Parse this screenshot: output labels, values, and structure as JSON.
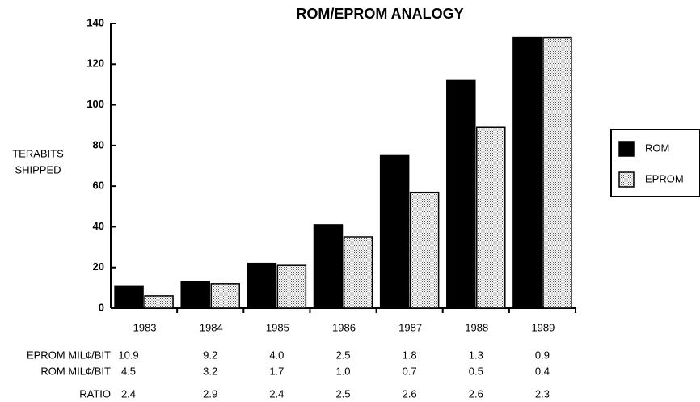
{
  "chart_data": {
    "type": "bar",
    "title": "ROM/EPROM ANALOGY",
    "ylabel": [
      "TERABITS",
      "SHIPPED"
    ],
    "categories": [
      "1983",
      "1984",
      "1985",
      "1986",
      "1987",
      "1988",
      "1989"
    ],
    "series": [
      {
        "name": "ROM",
        "color": "#000000",
        "values": [
          11,
          13,
          22,
          41,
          75,
          112,
          133
        ]
      },
      {
        "name": "EPROM",
        "color": "#c8c8c8",
        "values": [
          6,
          12,
          21,
          35,
          57,
          89,
          133
        ]
      }
    ],
    "ylim": [
      0,
      140
    ],
    "yticks": [
      0,
      20,
      40,
      60,
      80,
      100,
      120,
      140
    ],
    "grid": false,
    "legend": "right"
  },
  "table": {
    "rows": [
      {
        "label": "EPROM MIL¢/BIT",
        "values": [
          "10.9",
          "9.2",
          "4.0",
          "2.5",
          "1.8",
          "1.3",
          "0.9"
        ]
      },
      {
        "label": "ROM MIL¢/BIT",
        "values": [
          "4.5",
          "3.2",
          "1.7",
          "1.0",
          "0.7",
          "0.5",
          "0.4"
        ]
      },
      {
        "label": "RATIO",
        "values": [
          "2.4",
          "2.9",
          "2.4",
          "2.5",
          "2.6",
          "2.6",
          "2.3"
        ]
      }
    ]
  }
}
